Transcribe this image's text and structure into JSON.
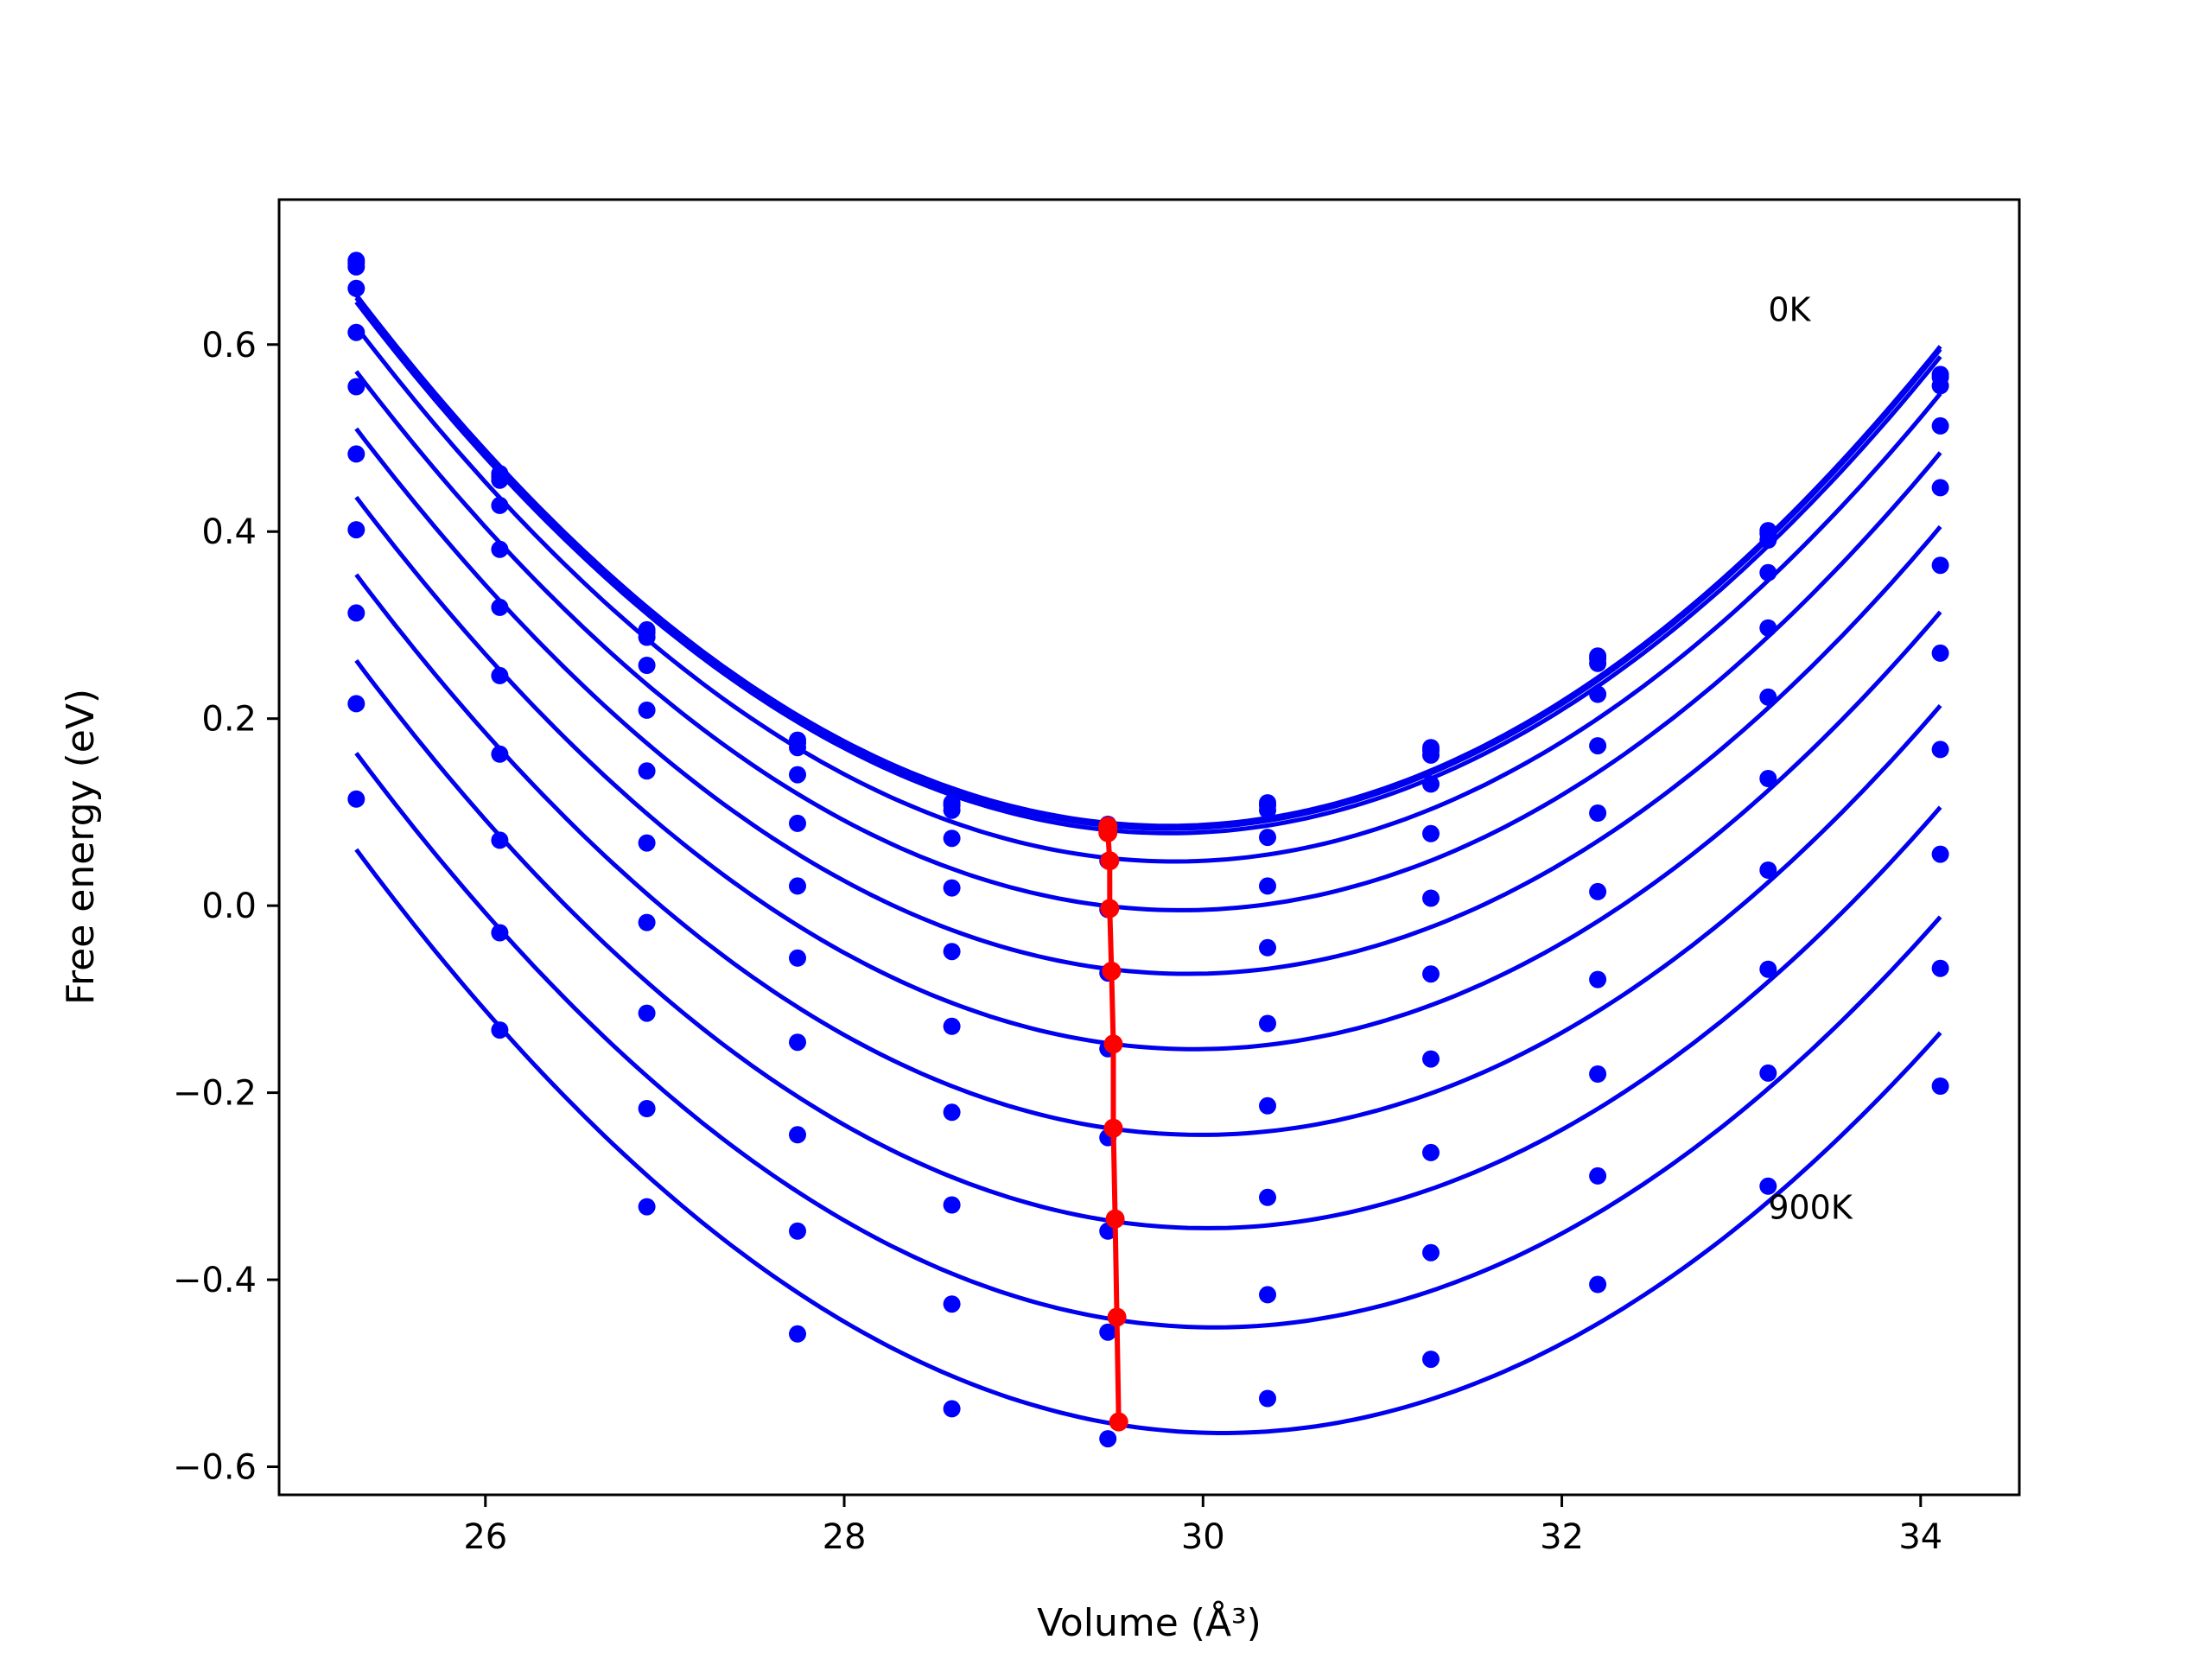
{
  "chart_data": {
    "type": "line",
    "title": "",
    "xlabel": "Volume",
    "xlabel_unit": "(Å³)",
    "ylabel": "Free energy (eV)",
    "xlim": [
      24.85,
      34.55
    ],
    "ylim": [
      -0.63,
      0.755
    ],
    "xticks": [
      26,
      28,
      30,
      32,
      34
    ],
    "yticks": [
      -0.6,
      -0.4,
      -0.2,
      0.0,
      0.2,
      0.4,
      0.6
    ],
    "xtick_labels": [
      "26",
      "28",
      "30",
      "32",
      "34"
    ],
    "ytick_labels": [
      "−0.6",
      "−0.4",
      "−0.2",
      "0.0",
      "0.2",
      "0.4",
      "0.6"
    ],
    "grid": false,
    "legend": "none",
    "colors": {
      "curves": "#0000ee",
      "points": "#0000ff",
      "minimum_path": "#ff0000"
    },
    "annotations": [
      {
        "text": "0K",
        "x": 33.15,
        "y": 0.625
      },
      {
        "text": "900K",
        "x": 33.15,
        "y": -0.335
      }
    ],
    "volumes": [
      25.28,
      26.08,
      26.9,
      27.74,
      28.6,
      29.47,
      30.36,
      31.27,
      32.2,
      33.15,
      34.11
    ],
    "series": [
      {
        "values": [
          0.69,
          0.462,
          0.295,
          0.177,
          0.11,
          0.087,
          0.11,
          0.169,
          0.267,
          0.401,
          0.568
        ],
        "min": [
          29.47,
          0.085
        ]
      },
      {
        "values": [
          0.687,
          0.459,
          0.292,
          0.174,
          0.107,
          0.084,
          0.107,
          0.166,
          0.264,
          0.398,
          0.565
        ],
        "min": [
          29.47,
          0.082
        ]
      },
      {
        "values": [
          0.683,
          0.455,
          0.287,
          0.169,
          0.102,
          0.079,
          0.102,
          0.161,
          0.259,
          0.391,
          0.556
        ],
        "min": [
          29.47,
          0.078
        ]
      },
      {
        "values": [
          0.66,
          0.428,
          0.257,
          0.14,
          0.072,
          0.048,
          0.073,
          0.13,
          0.226,
          0.356,
          0.513
        ],
        "min": [
          29.48,
          0.048
        ]
      },
      {
        "values": [
          0.613,
          0.381,
          0.209,
          0.088,
          0.019,
          -0.004,
          0.021,
          0.077,
          0.171,
          0.297,
          0.447
        ],
        "min": [
          29.48,
          -0.003
        ]
      },
      {
        "values": [
          0.555,
          0.319,
          0.144,
          0.021,
          -0.049,
          -0.072,
          -0.045,
          0.008,
          0.099,
          0.223,
          0.364
        ],
        "min": [
          29.49,
          -0.07
        ]
      },
      {
        "values": [
          0.483,
          0.246,
          0.067,
          -0.056,
          -0.129,
          -0.153,
          -0.126,
          -0.073,
          0.015,
          0.136,
          0.27
        ],
        "min": [
          29.5,
          -0.148
        ]
      },
      {
        "values": [
          0.402,
          0.162,
          -0.018,
          -0.146,
          -0.221,
          -0.248,
          -0.214,
          -0.164,
          -0.079,
          0.038,
          0.167
        ],
        "min": [
          29.5,
          -0.238
        ]
      },
      {
        "values": [
          0.313,
          0.07,
          -0.115,
          -0.245,
          -0.32,
          -0.348,
          -0.312,
          -0.264,
          -0.18,
          -0.068,
          0.055
        ],
        "min": [
          29.51,
          -0.335
        ]
      },
      {
        "values": [
          0.216,
          -0.029,
          -0.217,
          -0.348,
          -0.426,
          -0.456,
          -0.416,
          -0.371,
          -0.289,
          -0.179,
          -0.067
        ],
        "min": [
          29.52,
          -0.44
        ]
      },
      {
        "values": [
          0.114,
          -0.133,
          -0.322,
          -0.458,
          -0.538,
          -0.57,
          -0.527,
          -0.485,
          -0.405,
          -0.3,
          -0.193
        ],
        "min": [
          29.53,
          -0.552
        ]
      }
    ]
  }
}
